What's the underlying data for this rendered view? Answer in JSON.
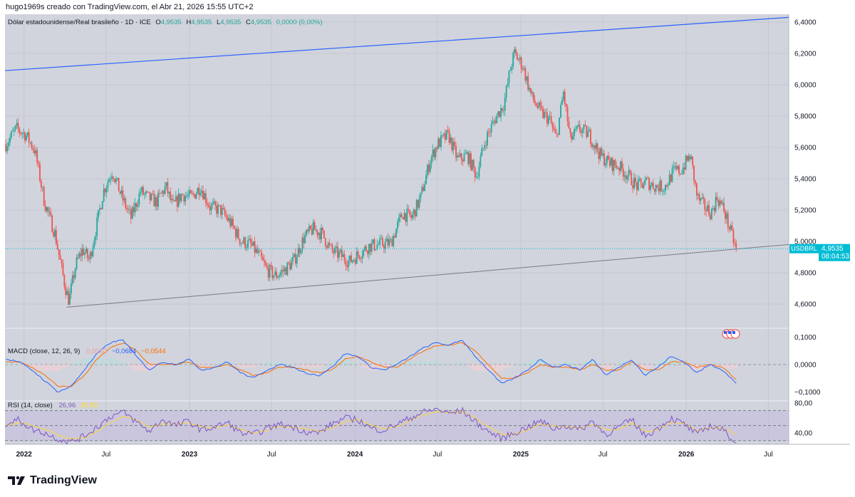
{
  "header": {
    "created_by": "hugo1969s creado con TradingView.com, el Abr 21, 2026 15:55 UTC+2"
  },
  "legend": {
    "symbol": "Dólar estadounidense/Real brasileño · 1D · ICE",
    "o_label": "O",
    "o": "4,9535",
    "h_label": "H",
    "h": "4,9535",
    "l_label": "L",
    "l": "4,9535",
    "c_label": "C",
    "c": "4,9535",
    "change": "0,0000 (0,00%)"
  },
  "price_badge": {
    "symbol": "USDBRL",
    "price": "4,9535",
    "countdown": "08:04:53"
  },
  "macd": {
    "title": "MACD (close, 12, 26, 9)",
    "hist": "0,0140",
    "macd": "−0,0684",
    "signal": "−0,0544"
  },
  "rsi": {
    "title": "RSI (14, close)",
    "rsi": "26,96",
    "ma": "38,89"
  },
  "footer": {
    "brand": "TradingView"
  },
  "colors": {
    "up": "#26a69a",
    "down": "#ef5350",
    "trendline_top": "#2962ff",
    "trendline_bottom": "#787b86",
    "macd_line": "#2962ff",
    "signal_line": "#ff6d00",
    "rsi_line": "#7e57c2",
    "rsi_ma": "#fdd835",
    "badge": "#00bcd4"
  },
  "chart_data": [
    {
      "type": "candlestick",
      "ylim": [
        4.45,
        6.45
      ],
      "y_ticks": [
        "6,4000",
        "6,2000",
        "6,0000",
        "5,8000",
        "5,6000",
        "5,4000",
        "5,2000",
        "5,0000",
        "4,8000",
        "4,6000"
      ],
      "y_tick_values": [
        6.4,
        6.2,
        6.0,
        5.8,
        5.6,
        5.4,
        5.2,
        5.0,
        4.8,
        4.6
      ],
      "x_ticks": [
        "2022",
        "Jul",
        "2023",
        "Jul",
        "2024",
        "Jul",
        "2025",
        "Jul",
        "2026",
        "Jul"
      ],
      "x_tick_dates": [
        "2022-01-01",
        "2022-07-01",
        "2023-01-01",
        "2023-07-01",
        "2024-01-01",
        "2024-07-01",
        "2025-01-01",
        "2025-07-01",
        "2026-01-01",
        "2026-07-01"
      ],
      "date_range": [
        "2021-11-20",
        "2026-08-15"
      ],
      "close_path": {
        "x": [
          "2021-11-22",
          "2021-12-15",
          "2022-01-05",
          "2022-01-25",
          "2022-02-15",
          "2022-03-10",
          "2022-04-01",
          "2022-04-10",
          "2022-04-25",
          "2022-05-10",
          "2022-05-25",
          "2022-06-10",
          "2022-06-25",
          "2022-07-15",
          "2022-08-05",
          "2022-08-25",
          "2022-09-15",
          "2022-10-01",
          "2022-10-20",
          "2022-11-10",
          "2022-11-25",
          "2022-12-15",
          "2023-01-05",
          "2023-01-25",
          "2023-02-15",
          "2023-03-10",
          "2023-04-01",
          "2023-04-25",
          "2023-05-15",
          "2023-06-01",
          "2023-06-20",
          "2023-07-10",
          "2023-07-31",
          "2023-08-20",
          "2023-09-10",
          "2023-09-30",
          "2023-10-20",
          "2023-11-10",
          "2023-12-01",
          "2023-12-20",
          "2024-01-10",
          "2024-02-01",
          "2024-02-25",
          "2024-03-20",
          "2024-04-15",
          "2024-05-05",
          "2024-05-25",
          "2024-06-15",
          "2024-07-01",
          "2024-07-25",
          "2024-08-15",
          "2024-09-05",
          "2024-09-25",
          "2024-10-15",
          "2024-11-05",
          "2024-11-25",
          "2024-12-10",
          "2024-12-18",
          "2025-01-05",
          "2025-01-25",
          "2025-02-15",
          "2025-03-05",
          "2025-03-20",
          "2025-04-05",
          "2025-04-20",
          "2025-05-10",
          "2025-06-01",
          "2025-06-25",
          "2025-07-15",
          "2025-08-05",
          "2025-08-25",
          "2025-09-15",
          "2025-10-05",
          "2025-10-25",
          "2025-11-15",
          "2025-12-05",
          "2025-12-20",
          "2026-01-10",
          "2026-01-25",
          "2026-02-10",
          "2026-02-25",
          "2026-03-10",
          "2026-03-25",
          "2026-04-10",
          "2026-04-21"
        ],
        "y": [
          5.62,
          5.72,
          5.68,
          5.58,
          5.25,
          5.05,
          4.72,
          4.62,
          4.85,
          4.95,
          4.88,
          5.1,
          5.32,
          5.45,
          5.28,
          5.15,
          5.32,
          5.28,
          5.25,
          5.35,
          5.22,
          5.3,
          5.28,
          5.35,
          5.22,
          5.2,
          5.12,
          5.0,
          4.98,
          4.92,
          4.82,
          4.78,
          4.82,
          4.88,
          5.02,
          5.08,
          5.05,
          4.94,
          4.91,
          4.87,
          4.92,
          4.97,
          4.98,
          4.99,
          5.18,
          5.15,
          5.28,
          5.52,
          5.62,
          5.68,
          5.52,
          5.55,
          5.42,
          5.65,
          5.78,
          5.88,
          6.12,
          6.2,
          6.12,
          5.92,
          5.82,
          5.78,
          5.65,
          5.95,
          5.65,
          5.72,
          5.68,
          5.55,
          5.5,
          5.48,
          5.42,
          5.35,
          5.38,
          5.35,
          5.35,
          5.45,
          5.45,
          5.55,
          5.28,
          5.22,
          5.18,
          5.28,
          5.2,
          5.05,
          4.9535
        ]
      },
      "trendline_top": {
        "x": [
          "2021-11-20",
          "2026-08-15"
        ],
        "y": [
          6.09,
          6.43
        ]
      },
      "trendline_bottom": {
        "x": [
          "2022-04-05",
          "2026-08-15"
        ],
        "y": [
          4.58,
          4.98
        ]
      },
      "last_price": 4.9535
    },
    {
      "type": "line",
      "title": "MACD (close, 12, 26, 9)",
      "ylim": [
        -0.13,
        0.13
      ],
      "y_ticks": [
        "0,1000",
        "0,0000",
        "−0,1000"
      ],
      "y_tick_values": [
        0.1,
        0.0,
        -0.1
      ],
      "series": [
        {
          "name": "MACD",
          "values": [
            0.02,
            0.01,
            -0.02,
            -0.06,
            -0.1,
            -0.08,
            -0.02,
            0.04,
            0.08,
            0.09,
            0.03,
            -0.02,
            0.01,
            0.0,
            0.02,
            -0.02,
            -0.01,
            0.01,
            -0.03,
            -0.05,
            -0.02,
            0.0,
            -0.01,
            -0.03,
            -0.04,
            -0.01,
            0.04,
            0.03,
            -0.01,
            -0.02,
            0.0,
            0.03,
            0.06,
            0.08,
            0.07,
            0.09,
            0.03,
            -0.02,
            -0.07,
            -0.05,
            -0.02,
            0.02,
            -0.01,
            0.0,
            -0.02,
            0.02,
            -0.04,
            -0.01,
            0.02,
            -0.04,
            -0.01,
            0.03,
            0.01,
            -0.03,
            0.0,
            -0.02,
            -0.0684
          ]
        },
        {
          "name": "Signal",
          "values": [
            0.01,
            0.01,
            -0.01,
            -0.04,
            -0.08,
            -0.08,
            -0.04,
            0.02,
            0.06,
            0.08,
            0.05,
            0.0,
            0.0,
            0.0,
            0.01,
            -0.01,
            -0.01,
            0.0,
            -0.02,
            -0.04,
            -0.03,
            -0.01,
            -0.01,
            -0.02,
            -0.03,
            -0.02,
            0.02,
            0.03,
            0.01,
            -0.01,
            -0.01,
            0.02,
            0.05,
            0.07,
            0.07,
            0.08,
            0.05,
            0.0,
            -0.05,
            -0.05,
            -0.03,
            0.0,
            -0.01,
            -0.01,
            -0.02,
            0.0,
            -0.02,
            -0.02,
            0.01,
            -0.02,
            -0.02,
            0.01,
            0.01,
            -0.01,
            0.0,
            -0.01,
            -0.0544
          ]
        }
      ]
    },
    {
      "type": "line",
      "title": "RSI (14, close)",
      "ylim": [
        25,
        82
      ],
      "y_ticks": [
        "80,00",
        "40,00"
      ],
      "y_tick_values": [
        80,
        40
      ],
      "bands": [
        70,
        50,
        30
      ],
      "series": [
        {
          "name": "RSI",
          "values": [
            52,
            58,
            45,
            40,
            32,
            28,
            36,
            48,
            62,
            68,
            55,
            42,
            58,
            50,
            56,
            44,
            48,
            54,
            40,
            38,
            46,
            52,
            48,
            42,
            40,
            52,
            60,
            58,
            46,
            44,
            52,
            60,
            68,
            72,
            66,
            70,
            55,
            42,
            33,
            40,
            48,
            56,
            46,
            50,
            44,
            56,
            38,
            48,
            58,
            36,
            46,
            60,
            52,
            38,
            50,
            44,
            26.96
          ]
        },
        {
          "name": "MA",
          "values": [
            50,
            54,
            50,
            45,
            38,
            32,
            34,
            42,
            54,
            62,
            58,
            48,
            52,
            52,
            54,
            48,
            47,
            51,
            44,
            40,
            43,
            49,
            48,
            45,
            42,
            47,
            55,
            58,
            50,
            46,
            49,
            56,
            64,
            68,
            67,
            68,
            60,
            48,
            38,
            38,
            44,
            52,
            49,
            49,
            46,
            52,
            44,
            45,
            54,
            42,
            44,
            55,
            53,
            43,
            47,
            46,
            38.89
          ]
        }
      ]
    }
  ]
}
